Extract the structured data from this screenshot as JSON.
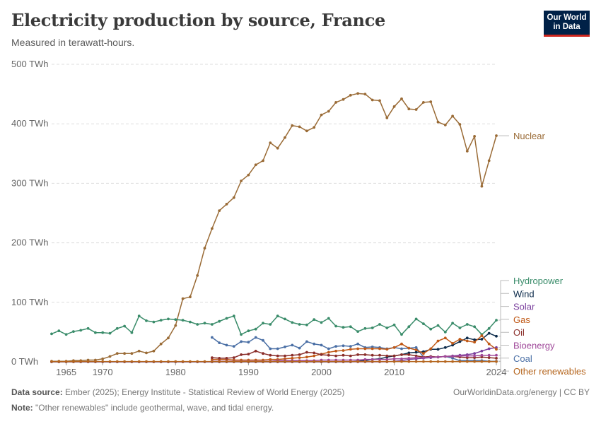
{
  "header": {
    "title": "Electricity production by source, France",
    "subtitle": "Measured in terawatt-hours."
  },
  "logo": {
    "line1": "Our World",
    "line2": "in Data"
  },
  "footer": {
    "source_label": "Data source:",
    "source_text": "Ember (2025); Energy Institute - Statistical Review of World Energy (2025)",
    "url_text": "OurWorldinData.org/energy | CC BY",
    "note_label": "Note:",
    "note_text": "\"Other renewables\" include geothermal, wave, and tidal energy."
  },
  "chart_data": {
    "type": "line",
    "title": "Electricity production by source, France",
    "subtitle": "Measured in terawatt-hours.",
    "xlim": [
      1963,
      2024
    ],
    "ylim": [
      0,
      500
    ],
    "y_ticks": [
      0,
      100,
      200,
      300,
      400,
      500
    ],
    "y_tick_labels": [
      "0 TWh",
      "100 TWh",
      "200 TWh",
      "300 TWh",
      "400 TWh",
      "500 TWh"
    ],
    "x_ticks": [
      1965,
      1970,
      1980,
      1990,
      2000,
      2010,
      2024
    ],
    "x_tick_labels": [
      "1965",
      "1970",
      "1980",
      "1990",
      "2000",
      "2010",
      "2024"
    ],
    "grid": "horizontal dashed",
    "legend": "right, labels at line ends",
    "series": [
      {
        "name": "Nuclear",
        "color": "#9a6b36",
        "label_value": 380,
        "x": [
          1963,
          1964,
          1965,
          1966,
          1967,
          1968,
          1969,
          1970,
          1971,
          1972,
          1973,
          1974,
          1975,
          1976,
          1977,
          1978,
          1979,
          1980,
          1981,
          1982,
          1983,
          1984,
          1985,
          1986,
          1987,
          1988,
          1989,
          1990,
          1991,
          1992,
          1993,
          1994,
          1995,
          1996,
          1997,
          1998,
          1999,
          2000,
          2001,
          2002,
          2003,
          2004,
          2005,
          2006,
          2007,
          2008,
          2009,
          2010,
          2011,
          2012,
          2013,
          2014,
          2015,
          2016,
          2017,
          2018,
          2019,
          2020,
          2021,
          2022,
          2023,
          2024
        ],
        "y": [
          1,
          1,
          1,
          2,
          2,
          3,
          3,
          5,
          9,
          14,
          14,
          14,
          18,
          15,
          18,
          30,
          40,
          61,
          106,
          109,
          145,
          191,
          224,
          254,
          265,
          276,
          304,
          314,
          331,
          338,
          368,
          359,
          377,
          397,
          395,
          388,
          394,
          415,
          421,
          436,
          441,
          448,
          451,
          450,
          440,
          439,
          410,
          429,
          442,
          425,
          424,
          436,
          437,
          403,
          398,
          413,
          399,
          354,
          379,
          295,
          338,
          380
        ]
      },
      {
        "name": "Hydropower",
        "color": "#3a8c6a",
        "label_value": 70,
        "x": [
          1963,
          1964,
          1965,
          1966,
          1967,
          1968,
          1969,
          1970,
          1971,
          1972,
          1973,
          1974,
          1975,
          1976,
          1977,
          1978,
          1979,
          1980,
          1981,
          1982,
          1983,
          1984,
          1985,
          1986,
          1987,
          1988,
          1989,
          1990,
          1991,
          1992,
          1993,
          1994,
          1995,
          1996,
          1997,
          1998,
          1999,
          2000,
          2001,
          2002,
          2003,
          2004,
          2005,
          2006,
          2007,
          2008,
          2009,
          2010,
          2011,
          2012,
          2013,
          2014,
          2015,
          2016,
          2017,
          2018,
          2019,
          2020,
          2021,
          2022,
          2023,
          2024
        ],
        "y": [
          47,
          52,
          46,
          51,
          53,
          56,
          49,
          49,
          48,
          56,
          60,
          49,
          77,
          69,
          67,
          70,
          72,
          71,
          70,
          67,
          63,
          65,
          63,
          68,
          73,
          77,
          46,
          52,
          55,
          65,
          63,
          77,
          72,
          66,
          63,
          62,
          71,
          66,
          73,
          60,
          58,
          59,
          51,
          56,
          57,
          63,
          57,
          62,
          46,
          59,
          72,
          64,
          55,
          61,
          50,
          65,
          57,
          63,
          59,
          46,
          56,
          70
        ]
      },
      {
        "name": "Coal",
        "color": "#4a6fa5",
        "label_value": 1,
        "x": [
          1985,
          1986,
          1987,
          1988,
          1989,
          1990,
          1991,
          1992,
          1993,
          1994,
          1995,
          1996,
          1997,
          1998,
          1999,
          2000,
          2001,
          2002,
          2003,
          2004,
          2005,
          2006,
          2007,
          2008,
          2009,
          2010,
          2011,
          2012,
          2013,
          2014,
          2015,
          2016,
          2017,
          2018,
          2019,
          2020,
          2021,
          2022,
          2023,
          2024
        ],
        "y": [
          41,
          32,
          28,
          26,
          34,
          33,
          41,
          36,
          22,
          22,
          25,
          28,
          23,
          34,
          30,
          28,
          22,
          26,
          27,
          26,
          30,
          24,
          25,
          24,
          22,
          24,
          22,
          23,
          24,
          8,
          8,
          8,
          9,
          6,
          2,
          2,
          2,
          2,
          1,
          1
        ]
      },
      {
        "name": "Wind",
        "color": "#0b2a4a",
        "label_value": 43,
        "x": [
          1963,
          1964,
          1965,
          1966,
          1967,
          1968,
          1969,
          1970,
          1971,
          1972,
          1973,
          1974,
          1975,
          1976,
          1977,
          1978,
          1979,
          1980,
          1981,
          1982,
          1983,
          1984,
          1985,
          1986,
          1987,
          1988,
          1989,
          1990,
          1991,
          1992,
          1993,
          1994,
          1995,
          1996,
          1997,
          1998,
          1999,
          2000,
          2001,
          2002,
          2003,
          2004,
          2005,
          2006,
          2007,
          2008,
          2009,
          2010,
          2011,
          2012,
          2013,
          2014,
          2015,
          2016,
          2017,
          2018,
          2019,
          2020,
          2021,
          2022,
          2023,
          2024
        ],
        "y": [
          0,
          0,
          0,
          0,
          0,
          0,
          0,
          0,
          0,
          0,
          0,
          0,
          0,
          0,
          0,
          0,
          0,
          0,
          0,
          0,
          0,
          0,
          0,
          0,
          0,
          0,
          0,
          0,
          0,
          0,
          0,
          0,
          0,
          0,
          0,
          0,
          0,
          0,
          0,
          0,
          0,
          0,
          1,
          2,
          4,
          5,
          8,
          10,
          12,
          15,
          16,
          17,
          21,
          21,
          24,
          28,
          34,
          40,
          37,
          38,
          48,
          43
        ]
      },
      {
        "name": "Solar",
        "color": "#7a3e9d",
        "label_value": 24,
        "x": [
          1963,
          1964,
          1965,
          1966,
          1967,
          1968,
          1969,
          1970,
          1971,
          1972,
          1973,
          1974,
          1975,
          1976,
          1977,
          1978,
          1979,
          1980,
          1981,
          1982,
          1983,
          1984,
          1985,
          1986,
          1987,
          1988,
          1989,
          1990,
          1991,
          1992,
          1993,
          1994,
          1995,
          1996,
          1997,
          1998,
          1999,
          2000,
          2001,
          2002,
          2003,
          2004,
          2005,
          2006,
          2007,
          2008,
          2009,
          2010,
          2011,
          2012,
          2013,
          2014,
          2015,
          2016,
          2017,
          2018,
          2019,
          2020,
          2021,
          2022,
          2023,
          2024
        ],
        "y": [
          0,
          0,
          0,
          0,
          0,
          0,
          0,
          0,
          0,
          0,
          0,
          0,
          0,
          0,
          0,
          0,
          0,
          0,
          0,
          0,
          0,
          0,
          0,
          0,
          0,
          0,
          0,
          0,
          0,
          0,
          0,
          0,
          0,
          0,
          0,
          0,
          0,
          0,
          0,
          0,
          0,
          0,
          0,
          0,
          0,
          0,
          0,
          1,
          2,
          4,
          5,
          6,
          7,
          8,
          9,
          10,
          11,
          12,
          14,
          18,
          22,
          24
        ]
      },
      {
        "name": "Gas",
        "color": "#c05917",
        "label_value": 21,
        "x": [
          1985,
          1986,
          1987,
          1988,
          1989,
          1990,
          1991,
          1992,
          1993,
          1994,
          1995,
          1996,
          1997,
          1998,
          1999,
          2000,
          2001,
          2002,
          2003,
          2004,
          2005,
          2006,
          2007,
          2008,
          2009,
          2010,
          2011,
          2012,
          2013,
          2014,
          2015,
          2016,
          2017,
          2018,
          2019,
          2020,
          2021,
          2022,
          2023,
          2024
        ],
        "y": [
          4,
          4,
          4,
          3,
          3,
          3,
          3,
          3,
          4,
          4,
          5,
          6,
          7,
          8,
          10,
          13,
          16,
          18,
          19,
          21,
          22,
          22,
          22,
          22,
          21,
          24,
          30,
          23,
          20,
          14,
          22,
          35,
          40,
          31,
          38,
          35,
          33,
          44,
          30,
          21
        ]
      },
      {
        "name": "Oil",
        "color": "#8a2e2a",
        "label_value": 6,
        "x": [
          1985,
          1986,
          1987,
          1988,
          1989,
          1990,
          1991,
          1992,
          1993,
          1994,
          1995,
          1996,
          1997,
          1998,
          1999,
          2000,
          2001,
          2002,
          2003,
          2004,
          2005,
          2006,
          2007,
          2008,
          2009,
          2010,
          2011,
          2012,
          2013,
          2014,
          2015,
          2016,
          2017,
          2018,
          2019,
          2020,
          2021,
          2022,
          2023,
          2024
        ],
        "y": [
          7,
          6,
          6,
          7,
          12,
          13,
          18,
          14,
          11,
          10,
          10,
          11,
          12,
          16,
          15,
          12,
          11,
          10,
          11,
          10,
          12,
          12,
          11,
          11,
          10,
          10,
          12,
          12,
          10,
          8,
          9,
          8,
          9,
          9,
          8,
          7,
          7,
          8,
          7,
          6
        ]
      },
      {
        "name": "Bioenergy",
        "color": "#a04a9a",
        "label_value": 11,
        "x": [
          1985,
          1986,
          1987,
          1988,
          1989,
          1990,
          1991,
          1992,
          1993,
          1994,
          1995,
          1996,
          1997,
          1998,
          1999,
          2000,
          2001,
          2002,
          2003,
          2004,
          2005,
          2006,
          2007,
          2008,
          2009,
          2010,
          2011,
          2012,
          2013,
          2014,
          2015,
          2016,
          2017,
          2018,
          2019,
          2020,
          2021,
          2022,
          2023,
          2024
        ],
        "y": [
          1,
          1,
          1,
          1,
          1,
          1,
          1,
          1,
          1,
          2,
          2,
          2,
          2,
          2,
          2,
          3,
          3,
          3,
          3,
          3,
          3,
          4,
          4,
          4,
          4,
          5,
          5,
          6,
          7,
          7,
          8,
          8,
          9,
          9,
          10,
          10,
          10,
          11,
          11,
          11
        ]
      },
      {
        "name": "Other renewables",
        "color": "#b5651d",
        "label_value": 0.5,
        "x": [
          1963,
          1964,
          1965,
          1966,
          1967,
          1968,
          1969,
          1970,
          1971,
          1972,
          1973,
          1974,
          1975,
          1976,
          1977,
          1978,
          1979,
          1980,
          1981,
          1982,
          1983,
          1984,
          1985,
          1986,
          1987,
          1988,
          1989,
          1990,
          1991,
          1992,
          1993,
          1994,
          1995,
          1996,
          1997,
          1998,
          1999,
          2000,
          2001,
          2002,
          2003,
          2004,
          2005,
          2006,
          2007,
          2008,
          2009,
          2010,
          2011,
          2012,
          2013,
          2014,
          2015,
          2016,
          2017,
          2018,
          2019,
          2020,
          2021,
          2022,
          2023,
          2024
        ],
        "y": [
          0.3,
          0.4,
          0.4,
          0.4,
          0.5,
          0.5,
          0.5,
          0.5,
          0.5,
          0.5,
          0.5,
          0.5,
          0.5,
          0.5,
          0.5,
          0.5,
          0.5,
          0.5,
          0.5,
          0.5,
          0.5,
          0.5,
          0.5,
          0.5,
          0.5,
          0.5,
          0.5,
          0.5,
          0.5,
          0.5,
          0.5,
          0.5,
          0.5,
          0.5,
          0.5,
          0.5,
          0.5,
          0.5,
          0.5,
          0.5,
          0.5,
          0.5,
          0.5,
          0.5,
          0.5,
          0.5,
          0.5,
          0.5,
          0.5,
          0.5,
          0.5,
          0.5,
          0.5,
          0.5,
          0.5,
          0.5,
          0.5,
          0.5,
          0.5,
          0.5,
          0.5,
          0.5
        ]
      }
    ],
    "labels_order": [
      "Hydropower",
      "Wind",
      "Solar",
      "Gas",
      "Oil",
      "Bioenergy",
      "Coal",
      "Other renewables"
    ]
  }
}
